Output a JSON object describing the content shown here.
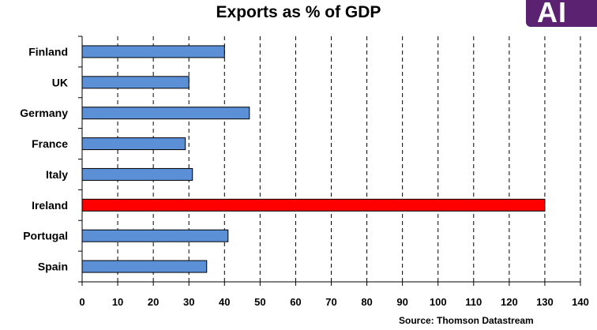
{
  "chart_data": {
    "type": "bar",
    "orientation": "horizontal",
    "title": "Exports as % of GDP",
    "categories": [
      "Finland",
      "UK",
      "Germany",
      "France",
      "Italy",
      "Ireland",
      "Portugal",
      "Spain"
    ],
    "values": [
      40,
      30,
      47,
      29,
      31,
      130,
      41,
      35
    ],
    "bar_colors": [
      "#5b8fd6",
      "#5b8fd6",
      "#5b8fd6",
      "#5b8fd6",
      "#5b8fd6",
      "#ff0000",
      "#5b8fd6",
      "#5b8fd6"
    ],
    "xlim": [
      0,
      140
    ],
    "xticks": [
      0,
      10,
      20,
      30,
      40,
      50,
      60,
      70,
      80,
      90,
      100,
      110,
      120,
      130,
      140
    ],
    "grid": "vertical dashed",
    "source": "Source: Thomson Datastream"
  },
  "logo": {
    "text": "AI"
  }
}
